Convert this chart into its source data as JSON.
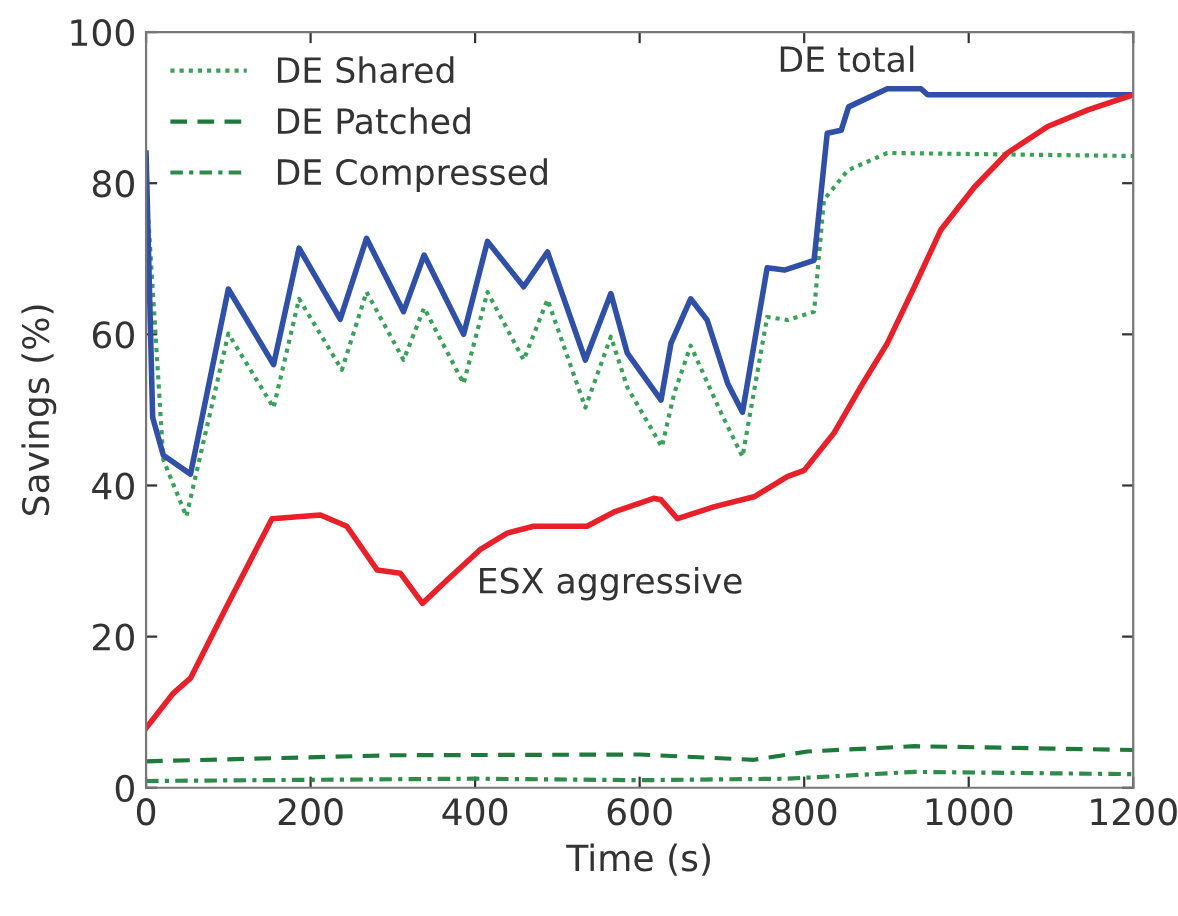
{
  "chart_data": {
    "type": "line",
    "xlabel": "Time (s)",
    "ylabel": "Savings (%)",
    "xlim": [
      0,
      1200
    ],
    "ylim": [
      0,
      100
    ],
    "xticks": [
      0,
      200,
      400,
      600,
      800,
      1000,
      1200
    ],
    "yticks": [
      0,
      20,
      40,
      60,
      80,
      100
    ],
    "grid": false,
    "legend": "top left",
    "marker": "none",
    "series": [
      {
        "name": "DE Shared",
        "color": "#3aa05a",
        "line_style": "dotted",
        "x": [
          0,
          21,
          49,
          100,
          155,
          186,
          238,
          268,
          313,
          338,
          386,
          415,
          459,
          488,
          534,
          565,
          585,
          627,
          642,
          662,
          699,
          725,
          755,
          780,
          812,
          824,
          853,
          901,
          1200
        ],
        "values": [
          80,
          43.4,
          35.9,
          60.1,
          50.3,
          64.7,
          55.3,
          65.6,
          56.6,
          63.5,
          53.5,
          65.6,
          56.6,
          64.6,
          50.3,
          59.7,
          53,
          45.1,
          52.2,
          58.5,
          49.6,
          43.8,
          62.3,
          61.9,
          63,
          77.8,
          81.7,
          84,
          83.6
        ]
      },
      {
        "name": "DE Patched",
        "color": "#1e7a3a",
        "line_style": "dashed",
        "x": [
          0,
          300,
          600,
          739,
          804,
          934,
          1200
        ],
        "values": [
          3.5,
          4.3,
          4.4,
          3.7,
          4.8,
          5.5,
          5.0
        ]
      },
      {
        "name": "DE Compressed",
        "color": "#2e8b4a",
        "line_style": "dashdot",
        "x": [
          0,
          400,
          600,
          780,
          934,
          1200
        ],
        "values": [
          0.9,
          1.2,
          1.0,
          1.2,
          2.1,
          1.8
        ]
      },
      {
        "color": "#3050a8",
        "line_style": "solid",
        "x": [
          0,
          8,
          21,
          54,
          100,
          155,
          186,
          236,
          268,
          313,
          338,
          386,
          415,
          459,
          488,
          534,
          565,
          585,
          626,
          638,
          662,
          682,
          707,
          725,
          755,
          776,
          812,
          828,
          845,
          854,
          901,
          942,
          950,
          1200
        ],
        "values": [
          84,
          49,
          44,
          41.5,
          66,
          56,
          71.4,
          62,
          72.7,
          63,
          70.5,
          60,
          72.3,
          66.3,
          70.9,
          56.6,
          65.4,
          57.5,
          51.3,
          58.8,
          64.7,
          61.9,
          53.5,
          49.7,
          68.8,
          68.5,
          69.8,
          86.6,
          87,
          90.1,
          92.5,
          92.5,
          91.7,
          91.7
        ]
      },
      {
        "color": "#e8202a",
        "line_style": "solid",
        "x": [
          0,
          33,
          54,
          98,
          153,
          212,
          244,
          281,
          309,
          336,
          366,
          406,
          439,
          471,
          536,
          569,
          617,
          626,
          646,
          691,
          739,
          780,
          800,
          836,
          869,
          901,
          934,
          966,
          1007,
          1047,
          1096,
          1145,
          1200
        ],
        "values": [
          7.9,
          12.5,
          14.5,
          24,
          35.6,
          36.1,
          34.6,
          28.8,
          28.4,
          24.4,
          27.5,
          31.5,
          33.7,
          34.6,
          34.6,
          36.5,
          38.3,
          38.1,
          35.6,
          37.2,
          38.5,
          41.2,
          42,
          46.9,
          53.1,
          58.8,
          66.3,
          73.8,
          79.5,
          84,
          87.5,
          89.7,
          91.7
        ]
      }
    ],
    "annotations": [
      "DE total",
      "ESX aggressive"
    ]
  }
}
